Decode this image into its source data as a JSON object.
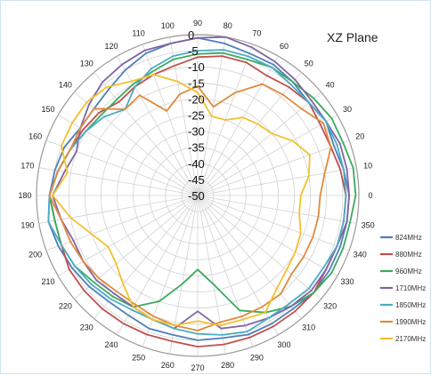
{
  "chart_data": {
    "type": "polar-line",
    "title": "XZ  Plane",
    "radial_range": [
      -50,
      0
    ],
    "radial_ticks": [
      "0",
      "-5",
      "-10",
      "-15",
      "-20",
      "-25",
      "-30",
      "-35",
      "-40",
      "-45",
      "-50"
    ],
    "angle_step": 10,
    "angle_labels": [
      "0",
      "10",
      "20",
      "30",
      "40",
      "50",
      "60",
      "70",
      "80",
      "90",
      "100",
      "110",
      "120",
      "130",
      "140",
      "150",
      "160",
      "170",
      "180",
      "190",
      "200",
      "210",
      "220",
      "230",
      "240",
      "250",
      "260",
      "270",
      "280",
      "290",
      "300",
      "310",
      "320",
      "330",
      "340",
      "350"
    ],
    "grid": true,
    "legend_position": "right",
    "angles": [
      0,
      10,
      20,
      30,
      40,
      50,
      60,
      70,
      80,
      90,
      100,
      110,
      120,
      130,
      140,
      150,
      160,
      170,
      180,
      190,
      200,
      210,
      220,
      230,
      240,
      250,
      260,
      270,
      280,
      290,
      300,
      310,
      320,
      330,
      340,
      350
    ],
    "series": [
      {
        "name": "824MHz",
        "color": "#4e7fb8",
        "values": [
          -3,
          -4,
          -5,
          -4,
          -5,
          -4,
          -3,
          -3,
          -2,
          -1,
          -2,
          -3,
          -5,
          -7,
          -8,
          -8,
          -6,
          -5,
          -4,
          -3,
          -4,
          -5,
          -6,
          -7,
          -7,
          -6,
          -6,
          -5,
          -5,
          -4,
          -4,
          -4,
          -3,
          -3,
          -3,
          -3
        ]
      },
      {
        "name": "880MHz",
        "color": "#c0504d",
        "values": [
          -4,
          -5,
          -6,
          -6,
          -5,
          -6,
          -7,
          -6,
          -6,
          -7,
          -9,
          -10,
          -11,
          -12,
          -10,
          -9,
          -8,
          -6,
          -4,
          -5,
          -5,
          -4,
          -4,
          -4,
          -4,
          -4,
          -4,
          -3,
          -3,
          -3,
          -3,
          -3,
          -3,
          -4,
          -4,
          -4
        ]
      },
      {
        "name": "960MHz",
        "color": "#3aaa5c",
        "values": [
          -1,
          -1,
          -2,
          -2,
          -3,
          -4,
          -4,
          -5,
          -5,
          -6,
          -7,
          -9,
          -10,
          -11,
          -11,
          -10,
          -8,
          -6,
          -4,
          -5,
          -5,
          -6,
          -8,
          -9,
          -10,
          -15,
          -22,
          -27,
          -22,
          -12,
          -8,
          -5,
          -3,
          -2,
          -2,
          -2
        ]
      },
      {
        "name": "1710MHz",
        "color": "#8064a2",
        "values": [
          -3,
          -3,
          -3,
          -4,
          -4,
          -3,
          -2,
          -1,
          0,
          -1,
          -2,
          -2,
          -3,
          -4,
          -6,
          -8,
          -10,
          -8,
          -5,
          -7,
          -9,
          -9,
          -9,
          -10,
          -10,
          -9,
          -8,
          -14,
          -8,
          -7,
          -6,
          -5,
          -4,
          -4,
          -4,
          -3
        ]
      },
      {
        "name": "1850MHz",
        "color": "#4bacc6",
        "values": [
          -4,
          -4,
          -4,
          -4,
          -5,
          -5,
          -4,
          -4,
          -4,
          -5,
          -6,
          -8,
          -11,
          -15,
          -12,
          -10,
          -8,
          -6,
          -4,
          -3,
          -5,
          -6,
          -7,
          -8,
          -9,
          -9,
          -8,
          -7,
          -6,
          -5,
          -6,
          -6,
          -5,
          -5,
          -4,
          -4
        ]
      },
      {
        "name": "1990MHz",
        "color": "#e08a3c",
        "values": [
          -12,
          -10,
          -6,
          -5,
          -8,
          -9,
          -10,
          -16,
          -22,
          -16,
          -18,
          -22,
          -14,
          -15,
          -8,
          -8,
          -8,
          -6,
          -4,
          -7,
          -8,
          -9,
          -10,
          -11,
          -11,
          -10,
          -9,
          -8,
          -10,
          -10,
          -10,
          -10,
          -12,
          -12,
          -12,
          -12
        ]
      },
      {
        "name": "2170MHz",
        "color": "#f2c12e",
        "values": [
          -18,
          -15,
          -13,
          -16,
          -20,
          -21,
          -22,
          -25,
          -25,
          -18,
          -14,
          -10,
          -9,
          -6,
          -5,
          -5,
          -5,
          -9,
          -5,
          -10,
          -15,
          -18,
          -17,
          -14,
          -10,
          -9,
          -9,
          -11,
          -9,
          -9,
          -8,
          -12,
          -14,
          -15,
          -16,
          -18
        ]
      }
    ]
  }
}
